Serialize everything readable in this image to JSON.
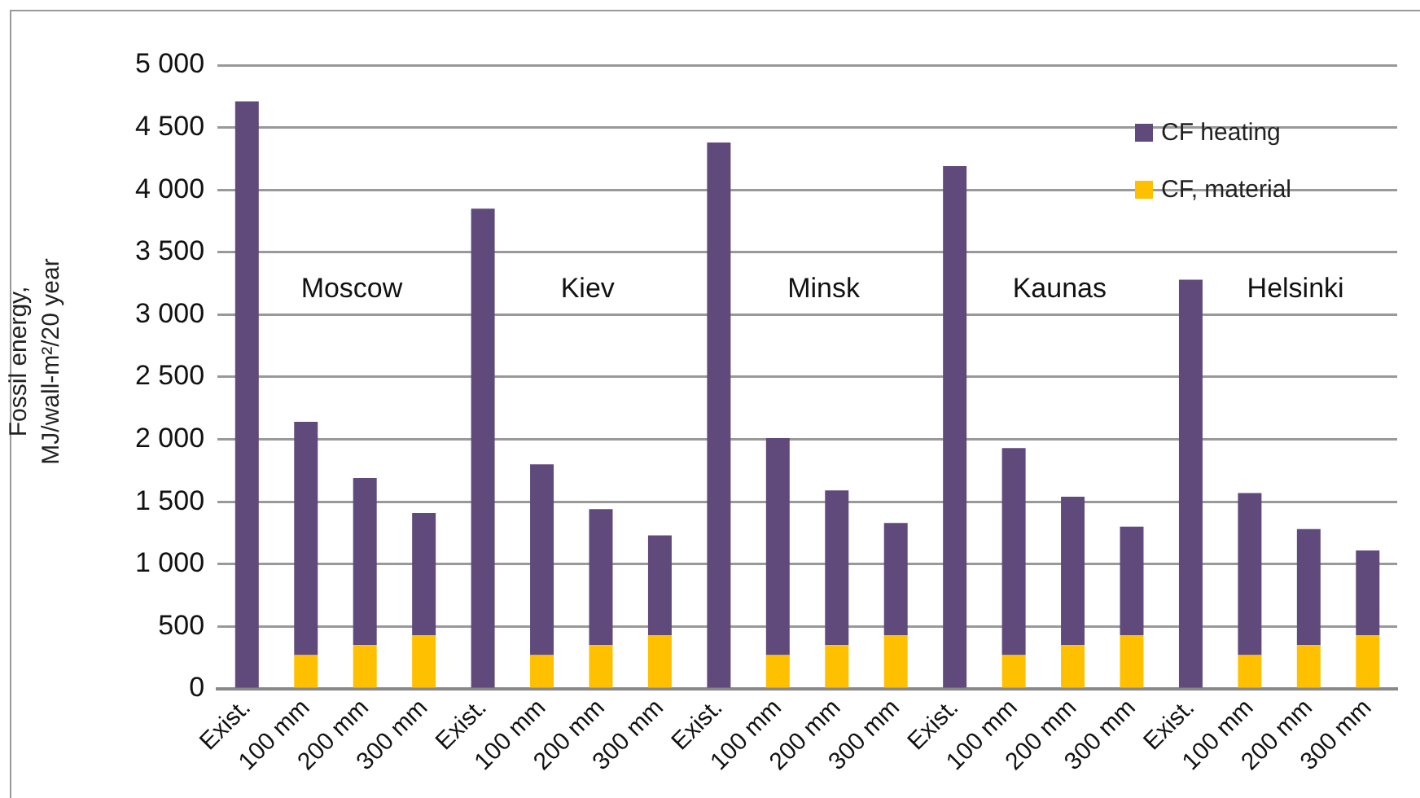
{
  "chart_data": {
    "type": "bar",
    "stacked": true,
    "ylabel": "Fossil energy,\nMJ/wall-m²/20 year",
    "categories": [
      "Exist.",
      "100 mm",
      "200 mm",
      "300 mm",
      "Exist.",
      "100 mm",
      "200 mm",
      "300 mm",
      "Exist.",
      "100 mm",
      "200 mm",
      "300 mm",
      "Exist.",
      "100 mm",
      "200 mm",
      "300 mm",
      "Exist.",
      "100 mm",
      "200 mm",
      "300 mm"
    ],
    "series": [
      {
        "name": "CF, material",
        "color": "#ffc000",
        "values": [
          0,
          270,
          350,
          430,
          0,
          270,
          350,
          430,
          0,
          270,
          350,
          430,
          0,
          270,
          350,
          430,
          0,
          270,
          350,
          430
        ]
      },
      {
        "name": "CF heating",
        "color": "#604a7b",
        "values": [
          4710,
          1870,
          1340,
          980,
          3850,
          1530,
          1090,
          800,
          4380,
          1740,
          1240,
          900,
          4190,
          1660,
          1190,
          870,
          3280,
          1300,
          930,
          680
        ]
      }
    ],
    "ylim": [
      0,
      5000
    ],
    "yticks": [
      {
        "value": 0,
        "label": "0"
      },
      {
        "value": 500,
        "label": "500"
      },
      {
        "value": 1000,
        "label": "1 000"
      },
      {
        "value": 1500,
        "label": "1 500"
      },
      {
        "value": 2000,
        "label": "2 000"
      },
      {
        "value": 2500,
        "label": "2 500"
      },
      {
        "value": 3000,
        "label": "3 000"
      },
      {
        "value": 3500,
        "label": "3 500"
      },
      {
        "value": 4000,
        "label": "4 000"
      },
      {
        "value": 4500,
        "label": "4 500"
      },
      {
        "value": 5000,
        "label": "5 000"
      }
    ],
    "grid": "y",
    "legend": "top right",
    "annotations": [
      "Moscow",
      "Kiev",
      "Minsk",
      "Kaunas",
      "Helsinki"
    ]
  }
}
